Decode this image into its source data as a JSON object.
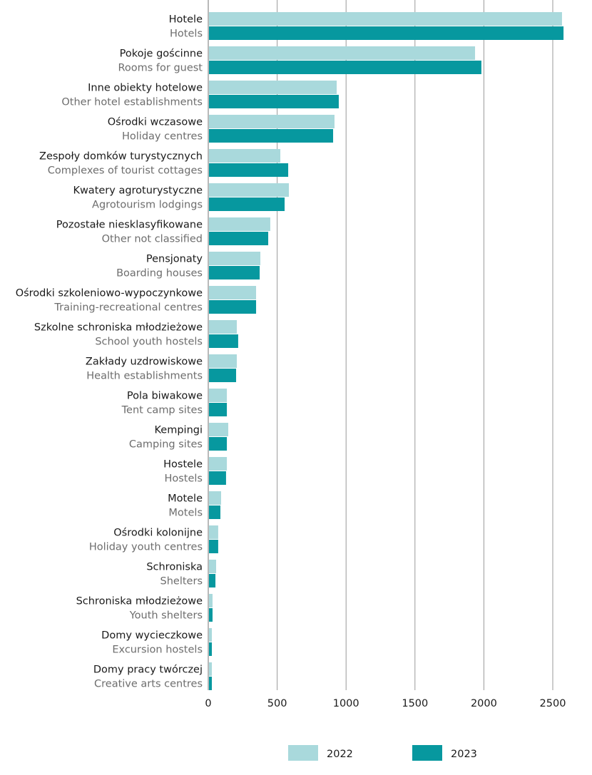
{
  "chart_data": {
    "type": "bar",
    "orientation": "horizontal",
    "categories": [
      {
        "pl": "Hotele",
        "en": "Hotels"
      },
      {
        "pl": "Pokoje gościnne",
        "en": "Rooms for guest"
      },
      {
        "pl": "Inne obiekty hotelowe",
        "en": "Other hotel establishments"
      },
      {
        "pl": "Ośrodki wczasowe",
        "en": "Holiday centres"
      },
      {
        "pl": "Zespoły domków turystycznych",
        "en": "Complexes of tourist cottages"
      },
      {
        "pl": "Kwatery agroturystyczne",
        "en": "Agrotourism lodgings"
      },
      {
        "pl": "Pozostałe niesklasyfikowane",
        "en": "Other not classified"
      },
      {
        "pl": "Pensjonaty",
        "en": "Boarding houses"
      },
      {
        "pl": "Ośrodki szkoleniowo-wypoczynkowe",
        "en": "Training-recreational centres"
      },
      {
        "pl": "Szkolne schroniska młodzieżowe",
        "en": "School youth hostels"
      },
      {
        "pl": "Zakłady uzdrowiskowe",
        "en": "Health establishments"
      },
      {
        "pl": "Pola biwakowe",
        "en": "Tent camp sites"
      },
      {
        "pl": "Kempingi",
        "en": "Camping sites"
      },
      {
        "pl": "Hostele",
        "en": "Hostels"
      },
      {
        "pl": "Motele",
        "en": "Motels"
      },
      {
        "pl": "Ośrodki kolonijne",
        "en": "Holiday youth centres"
      },
      {
        "pl": "Schroniska",
        "en": "Shelters"
      },
      {
        "pl": "Schroniska młodzieżowe",
        "en": "Youth shelters"
      },
      {
        "pl": "Domy wycieczkowe",
        "en": "Excursion hostels"
      },
      {
        "pl": "Domy pracy twórczej",
        "en": "Creative arts centres"
      }
    ],
    "series": [
      {
        "name": "2022",
        "color": "#a9d9dc",
        "values": [
          2567,
          1936,
          932,
          916,
          523,
          585,
          450,
          378,
          347,
          207,
          207,
          135,
          145,
          135,
          93,
          72,
          57,
          31,
          26,
          26
        ]
      },
      {
        "name": "2023",
        "color": "#07989f",
        "values": [
          2578,
          1982,
          947,
          906,
          580,
          554,
          435,
          373,
          347,
          217,
          202,
          135,
          135,
          129,
          88,
          72,
          52,
          31,
          26,
          26
        ]
      }
    ],
    "xlim": [
      0,
      2600
    ],
    "xticks": [
      0,
      500,
      1000,
      1500,
      2000,
      2500
    ],
    "grid": true,
    "legend": "bottom"
  }
}
